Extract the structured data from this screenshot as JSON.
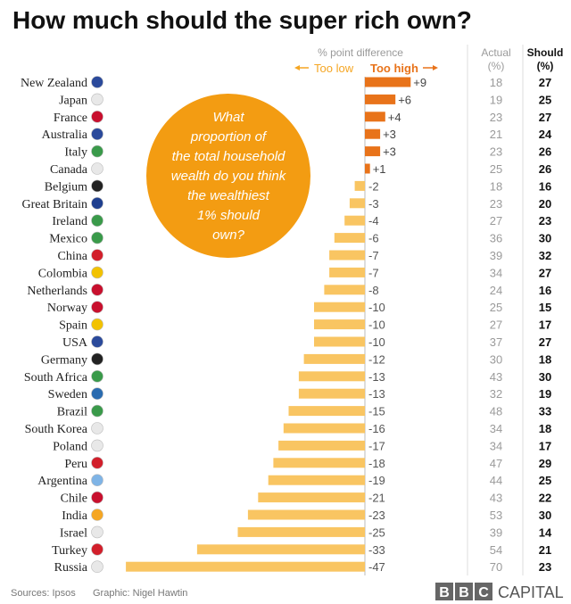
{
  "title": "How much should the super rich own?",
  "headers": {
    "difference": "% point difference",
    "too_low": "Too low",
    "too_high": "Too high",
    "actual": "Actual",
    "actual_unit": "(%)",
    "should": "Should",
    "should_unit": "(%)"
  },
  "question": [
    "What",
    "proportion of",
    "the total household",
    "wealth do you think",
    "the wealthiest",
    "1% should",
    "own?"
  ],
  "footer": {
    "sources": "Sources: Ipsos",
    "graphic": "Graphic: Nigel Hawtin",
    "brand_letters": [
      "B",
      "B",
      "C"
    ],
    "brand_word": "CAPITAL"
  },
  "colors": {
    "too_high": "#e8731a",
    "too_low": "#f9c562",
    "question_circle": "#f39c12",
    "brand_box": "#666666"
  },
  "chart_data": {
    "type": "bar",
    "xlabel": "% point difference",
    "categories": [
      "New Zealand",
      "Japan",
      "France",
      "Australia",
      "Italy",
      "Canada",
      "Belgium",
      "Great Britain",
      "Ireland",
      "Mexico",
      "China",
      "Colombia",
      "Netherlands",
      "Norway",
      "Spain",
      "USA",
      "Germany",
      "South Africa",
      "Sweden",
      "Brazil",
      "South Korea",
      "Poland",
      "Peru",
      "Argentina",
      "Chile",
      "India",
      "Israel",
      "Turkey",
      "Russia"
    ],
    "series": [
      {
        "name": "% point difference",
        "values": [
          9,
          6,
          4,
          3,
          3,
          1,
          -2,
          -3,
          -4,
          -6,
          -7,
          -7,
          -8,
          -10,
          -10,
          -10,
          -12,
          -13,
          -13,
          -15,
          -16,
          -17,
          -18,
          -19,
          -21,
          -23,
          -25,
          -33,
          -47
        ]
      }
    ],
    "value_labels": [
      "+9",
      "+6",
      "+4",
      "+3",
      "+3",
      "+1",
      "-2",
      "-3",
      "-4",
      "-6",
      "-7",
      "-7",
      "-8",
      "-10",
      "-10",
      "-10",
      "-12",
      "-13",
      "-13",
      "-15",
      "-16",
      "-17",
      "-18",
      "-19",
      "-21",
      "-23",
      "-25",
      "-33",
      "-47"
    ],
    "actual": [
      18,
      19,
      23,
      21,
      23,
      25,
      18,
      23,
      27,
      36,
      39,
      34,
      24,
      25,
      27,
      37,
      30,
      43,
      32,
      48,
      34,
      34,
      47,
      44,
      43,
      53,
      39,
      54,
      70
    ],
    "should": [
      27,
      25,
      27,
      24,
      26,
      26,
      16,
      20,
      23,
      30,
      32,
      27,
      16,
      15,
      17,
      27,
      18,
      30,
      19,
      33,
      18,
      17,
      29,
      25,
      22,
      30,
      14,
      21,
      23
    ],
    "xlim": [
      -47,
      9
    ]
  }
}
